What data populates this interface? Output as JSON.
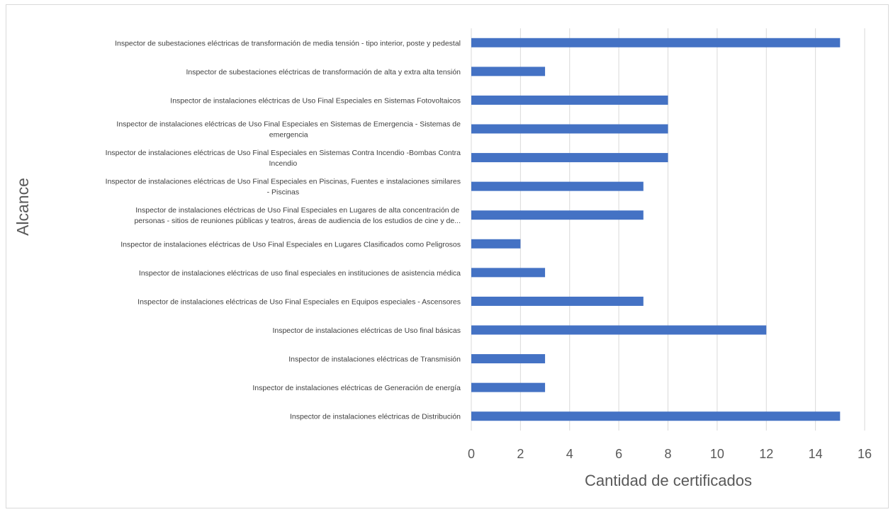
{
  "chart_data": {
    "type": "bar",
    "orientation": "horizontal",
    "title": "",
    "xlabel": "Cantidad de certificados",
    "ylabel": "Alcance",
    "xlim": [
      0,
      16
    ],
    "xticks": [
      0,
      2,
      4,
      6,
      8,
      10,
      12,
      14,
      16
    ],
    "grid": "vertical",
    "bar_color": "#4472C4",
    "categories": [
      [
        "Inspector de subestaciones eléctricas de transformación de media tensión - tipo interior, poste y pedestal"
      ],
      [
        "Inspector de subestaciones eléctricas de transformación de alta y extra alta tensión"
      ],
      [
        "Inspector de instalaciones eléctricas de Uso Final Especiales en Sistemas Fotovoltaicos"
      ],
      [
        "Inspector de instalaciones eléctricas de Uso Final Especiales en Sistemas de Emergencia - Sistemas de",
        "emergencia"
      ],
      [
        "Inspector de instalaciones eléctricas de Uso Final Especiales en Sistemas Contra Incendio -Bombas Contra",
        "Incendio"
      ],
      [
        "Inspector de instalaciones eléctricas de Uso Final Especiales en Piscinas, Fuentes e instalaciones similares",
        "- Piscinas"
      ],
      [
        "Inspector de instalaciones eléctricas de Uso Final Especiales en Lugares de alta concentración de",
        "personas - sitios de reuniones públicas y teatros, áreas de audiencia de los estudios de cine y de..."
      ],
      [
        "Inspector de instalaciones eléctricas de Uso Final Especiales en Lugares Clasificados como Peligrosos"
      ],
      [
        "Inspector de instalaciones eléctricas de uso final especiales en instituciones de asistencia médica"
      ],
      [
        "Inspector de instalaciones eléctricas de Uso Final Especiales en Equipos especiales - Ascensores"
      ],
      [
        "Inspector de instalaciones eléctricas de Uso final básicas"
      ],
      [
        "Inspector de instalaciones eléctricas de Transmisión"
      ],
      [
        "Inspector de instalaciones eléctricas de Generación de energía"
      ],
      [
        "Inspector de instalaciones eléctricas de Distribución"
      ]
    ],
    "values": [
      15,
      3,
      8,
      8,
      8,
      7,
      7,
      2,
      3,
      7,
      12,
      3,
      3,
      15
    ]
  }
}
